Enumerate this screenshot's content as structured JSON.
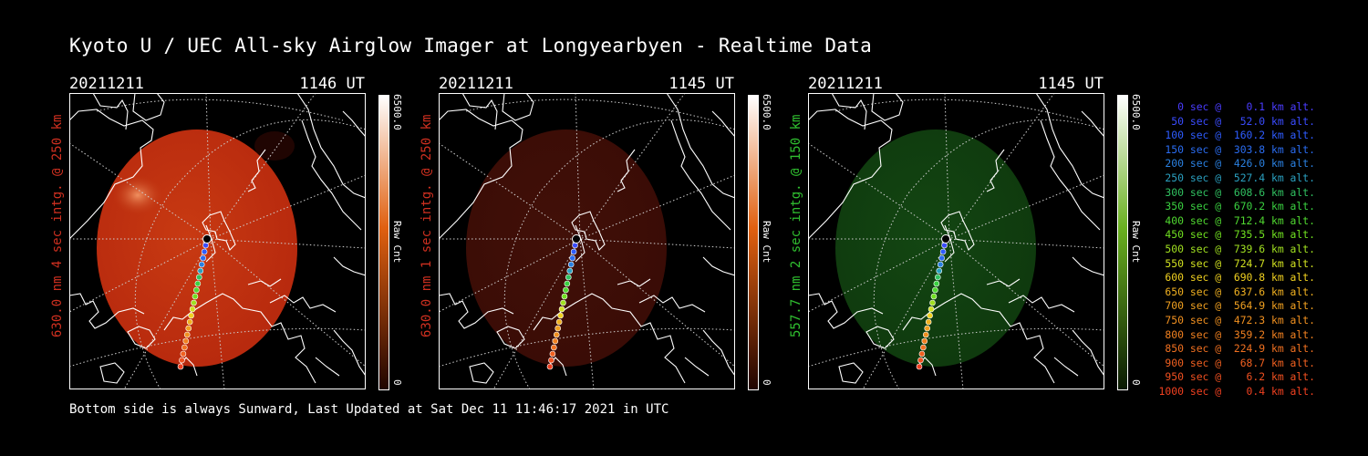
{
  "title": "Kyoto U / UEC All-sky Airglow Imager at Longyearbyen - Realtime Data",
  "panels": [
    {
      "date": "20211211",
      "time": "1146 UT",
      "side_label": "630.0 nm 4 sec intg. @ 250 km",
      "colorbar_max": "6500.0",
      "colorbar_unit": "Raw Cnt",
      "colorbar_min": "0",
      "label_color": "#d03020",
      "glow": "#b82a0e",
      "glow_center": "#c83a12",
      "cbar_top": "#ffffff",
      "cbar_mid": "#e06010",
      "cbar_bottom": "#200400"
    },
    {
      "date": "20211211",
      "time": "1145 UT",
      "side_label": "630.0 nm 1 sec intg. @ 250 km",
      "colorbar_max": "6500.0",
      "colorbar_unit": "Raw Cnt",
      "colorbar_min": "0",
      "label_color": "#d03020",
      "glow": "#3a0c06",
      "glow_center": "#421008",
      "cbar_top": "#ffffff",
      "cbar_mid": "#e06010",
      "cbar_bottom": "#200400"
    },
    {
      "date": "20211211",
      "time": "1145 UT",
      "side_label": "557.7 nm 2 sec intg. @ 150 km",
      "colorbar_max": "6500.0",
      "colorbar_unit": "Raw Cnt",
      "colorbar_min": "0",
      "label_color": "#30c030",
      "glow": "#0f3a0e",
      "glow_center": "#134612",
      "cbar_top": "#ffffff",
      "cbar_mid": "#6ab020",
      "cbar_bottom": "#0a1a02"
    }
  ],
  "legend": [
    {
      "text": "0 sec @    0.1 km alt.",
      "color": "#4a3cff"
    },
    {
      "text": "50 sec @   52.0 km alt.",
      "color": "#3a4cff"
    },
    {
      "text": "100 sec @  160.2 km alt.",
      "color": "#2e5cff"
    },
    {
      "text": "150 sec @  303.8 km alt.",
      "color": "#2a6cf0"
    },
    {
      "text": "200 sec @  426.0 km alt.",
      "color": "#2a80e0"
    },
    {
      "text": "250 sec @  527.4 km alt.",
      "color": "#2aa0c0"
    },
    {
      "text": "300 sec @  608.6 km alt.",
      "color": "#30c060"
    },
    {
      "text": "350 sec @  670.2 km alt.",
      "color": "#3ad040"
    },
    {
      "text": "400 sec @  712.4 km alt.",
      "color": "#50d830"
    },
    {
      "text": "450 sec @  735.5 km alt.",
      "color": "#70e020"
    },
    {
      "text": "500 sec @  739.6 km alt.",
      "color": "#a0e020"
    },
    {
      "text": "550 sec @  724.7 km alt.",
      "color": "#d0e020"
    },
    {
      "text": "600 sec @  690.8 km alt.",
      "color": "#f0d020"
    },
    {
      "text": "650 sec @  637.6 km alt.",
      "color": "#f0b020"
    },
    {
      "text": "700 sec @  564.9 km alt.",
      "color": "#f0a020"
    },
    {
      "text": "750 sec @  472.3 km alt.",
      "color": "#f09020"
    },
    {
      "text": "800 sec @  359.2 km alt.",
      "color": "#f08020"
    },
    {
      "text": "850 sec @  224.9 km alt.",
      "color": "#f07020"
    },
    {
      "text": "900 sec @   68.7 km alt.",
      "color": "#f06020"
    },
    {
      "text": "950 sec @    6.2 km alt.",
      "color": "#f05020"
    },
    {
      "text": "1000 sec @    0.4 km alt.",
      "color": "#f04020"
    }
  ],
  "footer": "Bottom side is always Sunward, Last Updated at Sat Dec 11 11:46:17 2021 in UTC"
}
